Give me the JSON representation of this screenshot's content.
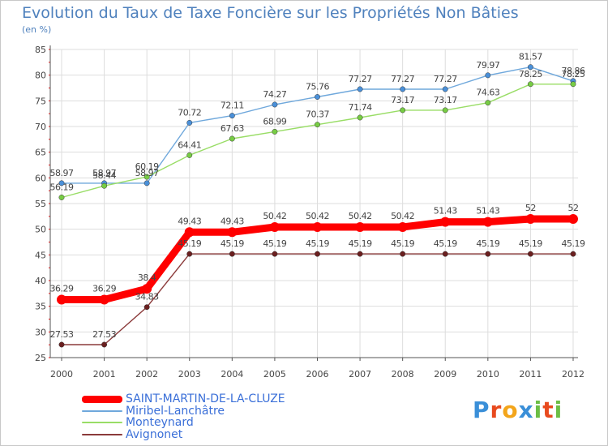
{
  "chart_data": {
    "type": "line",
    "title": "Evolution du Taux de Taxe Foncière sur les Propriétés Non Bâties",
    "ylabel": "(en %)",
    "xlabel": "",
    "ylim": [
      25,
      85
    ],
    "yticks": [
      25,
      30,
      35,
      40,
      45,
      50,
      55,
      60,
      65,
      70,
      75,
      80,
      85
    ],
    "grid": true,
    "categories": [
      "2000",
      "2001",
      "2002",
      "2003",
      "2004",
      "2005",
      "2006",
      "2007",
      "2008",
      "2009",
      "2010",
      "2011",
      "2012"
    ],
    "series": [
      {
        "name": "SAINT-MARTIN-DE-LA-CLUZE",
        "color": "#ff0000",
        "values": [
          36.29,
          36.29,
          38.4,
          49.43,
          49.43,
          50.42,
          50.42,
          50.42,
          50.42,
          51.43,
          51.43,
          52,
          52
        ],
        "labels": [
          "36.29",
          "36.29",
          "38.4",
          "49.43",
          "49.43",
          "50.42",
          "50.42",
          "50.42",
          "50.42",
          "51.43",
          "51.43",
          "52",
          "52"
        ]
      },
      {
        "name": "Miribel-Lanchâtre",
        "color": "#6fa8dc",
        "values": [
          58.97,
          58.97,
          58.97,
          70.72,
          72.11,
          74.27,
          75.76,
          77.27,
          77.27,
          77.27,
          79.97,
          81.57,
          78.86
        ],
        "labels": [
          "58.97",
          "58.97",
          "58.97",
          "70.72",
          "72.11",
          "74.27",
          "75.76",
          "77.27",
          "77.27",
          "77.27",
          "79.97",
          "81.57",
          "78.86"
        ]
      },
      {
        "name": "Monteynard",
        "color": "#99dd66",
        "values": [
          56.19,
          58.44,
          60.19,
          64.41,
          67.63,
          68.99,
          70.37,
          71.74,
          73.17,
          73.17,
          74.63,
          78.25,
          78.25
        ],
        "labels": [
          "56.19",
          "58.44",
          "60.19",
          "64.41",
          "67.63",
          "68.99",
          "70.37",
          "71.74",
          "73.17",
          "73.17",
          "74.63",
          "78.25",
          "78.25"
        ]
      },
      {
        "name": "Avignonet",
        "color": "#8b3a3a",
        "values": [
          27.53,
          27.53,
          34.83,
          45.19,
          45.19,
          45.19,
          45.19,
          45.19,
          45.19,
          45.19,
          45.19,
          45.19,
          45.19
        ],
        "labels": [
          "27.53",
          "27.53",
          "34.83",
          "45.19",
          "45.19",
          "45.19",
          "45.19",
          "45.19",
          "45.19",
          "45.19",
          "45.19",
          "45.19",
          "45.19"
        ]
      }
    ]
  },
  "logo": {
    "letters": [
      "P",
      "r",
      "o",
      "x",
      "i",
      "t",
      "i"
    ],
    "colors": [
      "#3a8fd8",
      "#e84a1e",
      "#f3a51b",
      "#3a8fd8",
      "#6cbe45",
      "#e84a1e",
      "#6cbe45"
    ]
  },
  "colors": {
    "axis": "#555555",
    "grid": "#dddddd",
    "tick_red": "#ff0000",
    "label": "#444444"
  }
}
